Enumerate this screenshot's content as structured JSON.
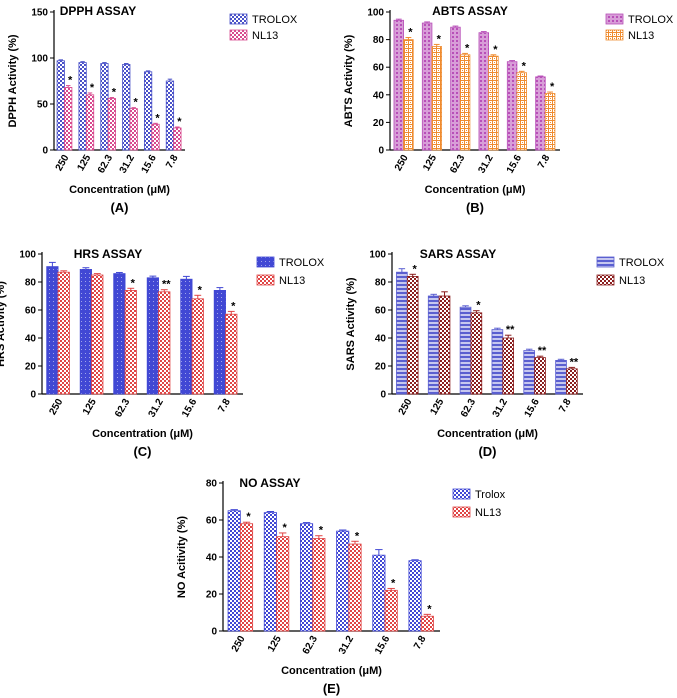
{
  "chart_data": [
    {
      "panel_label": "(A)",
      "type": "bar",
      "title": "DPPH ASSAY",
      "xlabel": "Concentration (μM)",
      "ylabel": "DPPH Activity (%)",
      "ylim": [
        0,
        150
      ],
      "yticks": [
        "0",
        "50",
        "100",
        "150"
      ],
      "categories": [
        "250",
        "125",
        "62.3",
        "31.2",
        "15.6",
        "7.8"
      ],
      "series": [
        {
          "name": "TROLOX",
          "color": "#4b52c8",
          "pattern": "check",
          "values": [
            97,
            95,
            94,
            93,
            85,
            75
          ],
          "errors": [
            1,
            1,
            1,
            1,
            1,
            2
          ],
          "significance": [
            "",
            "",
            "",
            "",
            "",
            ""
          ]
        },
        {
          "name": "NL13",
          "color": "#d84a8e",
          "pattern": "check",
          "values": [
            68,
            60,
            56,
            45,
            28,
            24
          ],
          "errors": [
            2,
            2,
            1,
            1,
            1,
            1
          ],
          "significance": [
            "*",
            "*",
            "*",
            "*",
            "*",
            "*"
          ]
        }
      ],
      "legend_position": "top-right"
    },
    {
      "panel_label": "(B)",
      "type": "bar",
      "title": "ABTS ASSAY",
      "xlabel": "Concentration (μM)",
      "ylabel": "ABTS Activity (%)",
      "ylim": [
        0,
        100
      ],
      "yticks": [
        "0",
        "20",
        "40",
        "60",
        "80",
        "100"
      ],
      "categories": [
        "250",
        "125",
        "62.3",
        "31.2",
        "15.6",
        "7.8"
      ],
      "series": [
        {
          "name": "TROLOX",
          "color": "#b84fb8",
          "pattern": "dots",
          "values": [
            94,
            92,
            89,
            85,
            64,
            53
          ],
          "errors": [
            0.8,
            0.8,
            0.8,
            0.8,
            0.8,
            0.6
          ],
          "significance": [
            "",
            "",
            "",
            "",
            "",
            ""
          ]
        },
        {
          "name": "NL13",
          "color": "#ef8c30",
          "pattern": "grid",
          "values": [
            80,
            75,
            69,
            68,
            56,
            41
          ],
          "errors": [
            1.5,
            1.5,
            1,
            1,
            1,
            1
          ],
          "significance": [
            "*",
            "*",
            "*",
            "*",
            "*",
            "*"
          ]
        }
      ],
      "legend_position": "top-right"
    },
    {
      "panel_label": "(C)",
      "type": "bar",
      "title": "HRS ASSAY",
      "xlabel": "Concentration (μM)",
      "ylabel": "HRS Activity (%)",
      "ylim": [
        0,
        100
      ],
      "yticks": [
        "0",
        "20",
        "40",
        "60",
        "80",
        "100"
      ],
      "categories": [
        "250",
        "125",
        "62.3",
        "31.2",
        "15.6",
        "7.8"
      ],
      "series": [
        {
          "name": "TROLOX",
          "color": "#4148d4",
          "pattern": "solid",
          "values": [
            91,
            89,
            86,
            83,
            82,
            74
          ],
          "errors": [
            3,
            1.2,
            0.8,
            1.2,
            2,
            2
          ],
          "significance": [
            "",
            "",
            "",
            "",
            "",
            ""
          ]
        },
        {
          "name": "NL13",
          "color": "#e04545",
          "pattern": "check",
          "values": [
            87,
            85,
            74,
            73,
            68,
            57
          ],
          "errors": [
            1,
            1,
            1.5,
            1.5,
            2.5,
            2
          ],
          "significance": [
            "",
            "",
            "*",
            "**",
            "*",
            "*"
          ]
        }
      ],
      "legend_position": "top-right"
    },
    {
      "panel_label": "(D)",
      "type": "bar",
      "title": "SARS ASSAY",
      "xlabel": "Concentration (μM)",
      "ylabel": "SARS Activity (%)",
      "ylim": [
        0,
        100
      ],
      "yticks": [
        "0",
        "20",
        "40",
        "60",
        "80",
        "100"
      ],
      "categories": [
        "250",
        "125",
        "62.3",
        "31.2",
        "15.6",
        "7.8"
      ],
      "series": [
        {
          "name": "TROLOX",
          "color": "#5a5fd0",
          "pattern": "lines",
          "values": [
            87,
            70,
            62,
            46,
            31,
            24
          ],
          "errors": [
            2.5,
            1.2,
            1,
            1,
            1,
            0.8
          ],
          "significance": [
            "",
            "",
            "",
            "",
            "",
            ""
          ]
        },
        {
          "name": "NL13",
          "color": "#8b1f1f",
          "pattern": "check",
          "values": [
            84,
            70,
            58,
            40,
            26,
            18
          ],
          "errors": [
            1.5,
            3,
            1.5,
            2,
            1,
            1
          ],
          "significance": [
            "*",
            "",
            "*",
            "**",
            "**",
            "**"
          ]
        }
      ],
      "legend_position": "top-right"
    },
    {
      "panel_label": "(E)",
      "type": "bar",
      "title": "NO ASSAY",
      "xlabel": "Concentration (μM)",
      "ylabel": "NO Acitivity (%)",
      "ylim": [
        0,
        80
      ],
      "yticks": [
        "0",
        "20",
        "40",
        "60",
        "80"
      ],
      "categories": [
        "250",
        "125",
        "62.3",
        "31.2",
        "15.6",
        "7.8"
      ],
      "series": [
        {
          "name": "Trolox",
          "color": "#4148d4",
          "pattern": "check",
          "values": [
            65,
            64,
            58,
            54,
            41,
            38
          ],
          "errors": [
            0.6,
            0.6,
            0.6,
            0.6,
            3,
            0.5
          ],
          "significance": [
            "",
            "",
            "",
            "",
            "",
            ""
          ]
        },
        {
          "name": "NL13",
          "color": "#e04545",
          "pattern": "check",
          "values": [
            58,
            51,
            50,
            47,
            22,
            8
          ],
          "errors": [
            0.8,
            2,
            1.5,
            1.5,
            1,
            1
          ],
          "significance": [
            "*",
            "*",
            "*",
            "*",
            "*",
            "*"
          ]
        }
      ],
      "legend_position": "top-right"
    }
  ]
}
